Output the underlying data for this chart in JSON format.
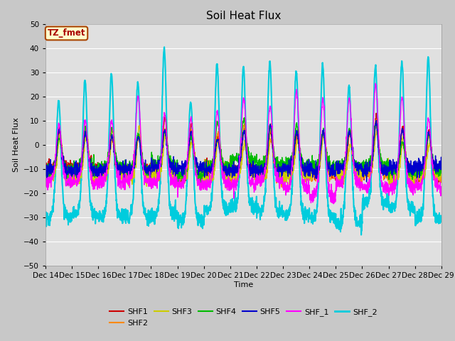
{
  "title": "Soil Heat Flux",
  "xlabel": "Time",
  "ylabel": "Soil Heat Flux",
  "ylim": [
    -50,
    50
  ],
  "yticks": [
    -50,
    -40,
    -30,
    -20,
    -10,
    0,
    10,
    20,
    30,
    40,
    50
  ],
  "fig_bg_color": "#c8c8c8",
  "plot_bg_color": "#e0e0e0",
  "grid_color": "#ffffff",
  "series_order": [
    "SHF1",
    "SHF2",
    "SHF3",
    "SHF4",
    "SHF5",
    "SHF_1",
    "SHF_2"
  ],
  "series": {
    "SHF1": {
      "color": "#cc0000",
      "lw": 1.0
    },
    "SHF2": {
      "color": "#ff8800",
      "lw": 1.0
    },
    "SHF3": {
      "color": "#cccc00",
      "lw": 1.0
    },
    "SHF4": {
      "color": "#00bb00",
      "lw": 1.0
    },
    "SHF5": {
      "color": "#0000cc",
      "lw": 1.0
    },
    "SHF_1": {
      "color": "#ff00ff",
      "lw": 1.0
    },
    "SHF_2": {
      "color": "#00ccdd",
      "lw": 1.5
    }
  },
  "tz_label": "TZ_fmet",
  "tz_bg": "#ffffcc",
  "tz_border": "#aa4400",
  "tz_text_color": "#aa0000",
  "n_days": 15,
  "points_per_day": 144,
  "legend_ncol_row1": 6,
  "start_day": 14
}
